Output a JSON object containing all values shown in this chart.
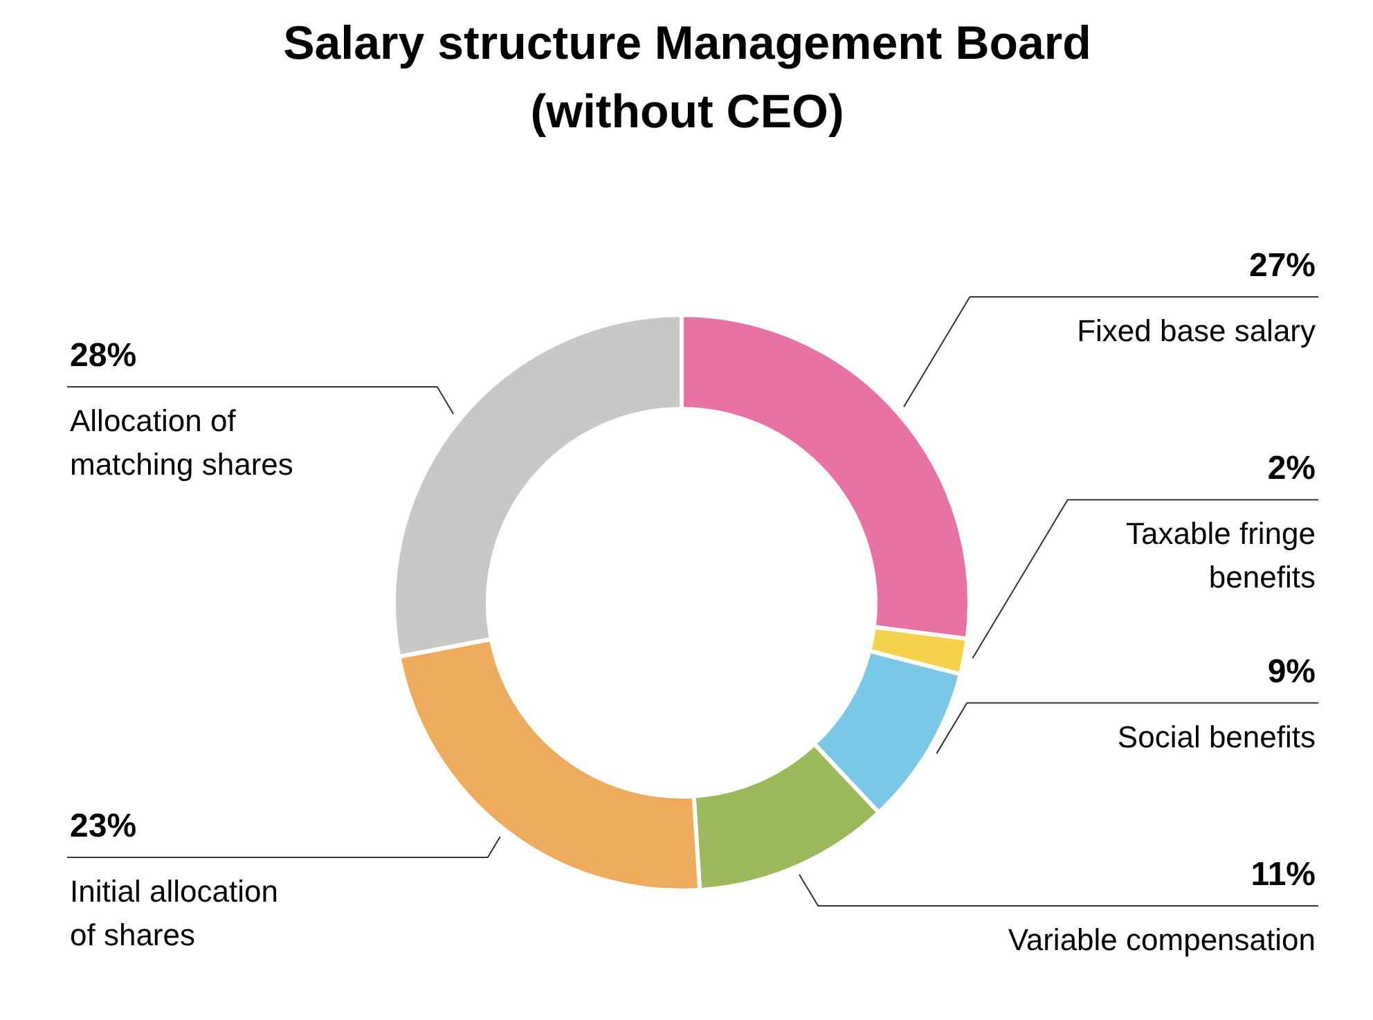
{
  "chart_data": {
    "type": "donut",
    "title": "Salary structure Management Board\n(without CEO)",
    "categories": [
      "Fixed base salary",
      "Taxable fringe benefits",
      "Social benefits",
      "Variable compensation",
      "Initial allocation of shares",
      "Allocation of matching shares"
    ],
    "values": [
      27,
      2,
      9,
      11,
      23,
      28
    ],
    "value_labels": [
      "27%",
      "2%",
      "9%",
      "11%",
      "23%",
      "28%"
    ],
    "colors": [
      "#e872a6",
      "#f5d24b",
      "#7ac8e6",
      "#9bb85a",
      "#eeab5b",
      "#c8c8c6"
    ]
  }
}
